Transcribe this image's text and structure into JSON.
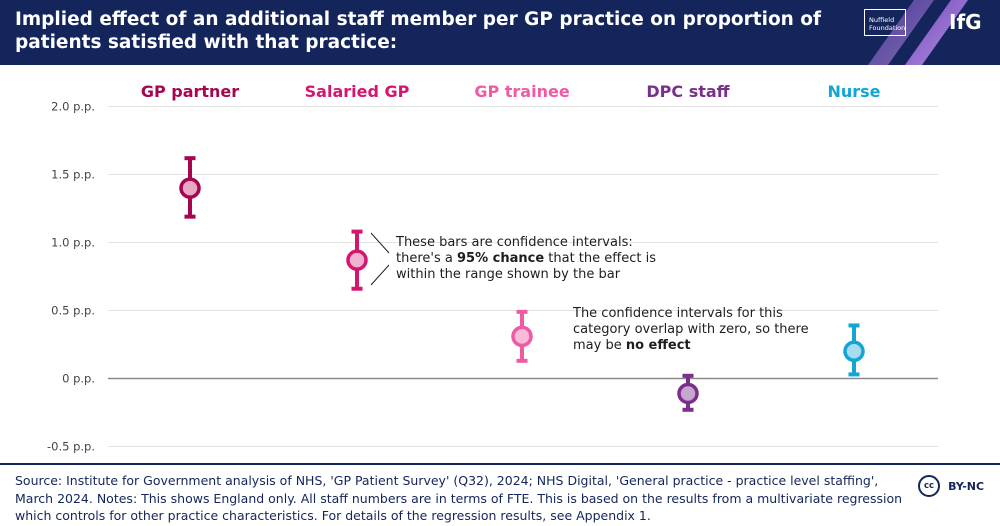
{
  "header": {
    "title": "Implied effect of an additional staff member per GP practice on proportion of patients satisfied with that practice:",
    "partner_logo": {
      "line1": "Nuffield",
      "line2": "Foundation"
    },
    "org_logo": "IfG",
    "background_color": "#14255b"
  },
  "chart_data": {
    "type": "point-range",
    "title": "",
    "ylabel": "",
    "ylim": [
      -0.5,
      2.0
    ],
    "yticks": [
      2.0,
      1.5,
      1.0,
      0.5,
      0,
      -0.5
    ],
    "ytick_labels": [
      "2.0 p.p.",
      "1.5 p.p.",
      "1.0 p.p.",
      "0.5 p.p.",
      "0 p.p.",
      "-0.5 p.p."
    ],
    "grid": true,
    "categories": [
      "GP partner",
      "Salaried GP",
      "GP trainee",
      "DPC staff",
      "Nurse"
    ],
    "colors": [
      "#a6064f",
      "#d4166e",
      "#ef5aa4",
      "#7a2f8d",
      "#12a6d6"
    ],
    "fill_colors": [
      "#e8a8c4",
      "#f1b2cf",
      "#f8bcd9",
      "#c7a6d0",
      "#a8dcef"
    ],
    "series": [
      {
        "values": [
          1.4,
          0.87,
          0.31,
          -0.11,
          0.2
        ],
        "lower": [
          1.19,
          0.66,
          0.13,
          -0.23,
          0.03
        ],
        "upper": [
          1.62,
          1.08,
          0.49,
          0.02,
          0.39
        ]
      }
    ],
    "annotations": [
      {
        "lines": [
          {
            "parts": [
              {
                "text": "These bars are confidence intervals:",
                "bold": false
              }
            ]
          },
          {
            "parts": [
              {
                "text": "there's a ",
                "bold": false
              },
              {
                "text": "95% chance",
                "bold": true
              },
              {
                "text": " that the effect is",
                "bold": false
              }
            ]
          },
          {
            "parts": [
              {
                "text": "within the range shown by the bar",
                "bold": false
              }
            ]
          }
        ]
      },
      {
        "lines": [
          {
            "parts": [
              {
                "text": "The confidence intervals for this",
                "bold": false
              }
            ]
          },
          {
            "parts": [
              {
                "text": "category overlap with zero, so there",
                "bold": false
              }
            ]
          },
          {
            "parts": [
              {
                "text": "may be ",
                "bold": false
              },
              {
                "text": "no effect",
                "bold": true
              }
            ]
          }
        ]
      }
    ]
  },
  "footer": {
    "source": "Source: Institute for Government analysis of NHS, 'GP Patient Survey' (Q32), 2024; NHS Digital, 'General practice - practice level staffing', March 2024. Notes: This shows England only. All staff numbers are in terms of FTE. This is based on the results from a multivariate regression which controls for other practice characteristics. For details of the regression results, see Appendix 1.",
    "license_icon": "cc",
    "license": "BY-NC"
  }
}
